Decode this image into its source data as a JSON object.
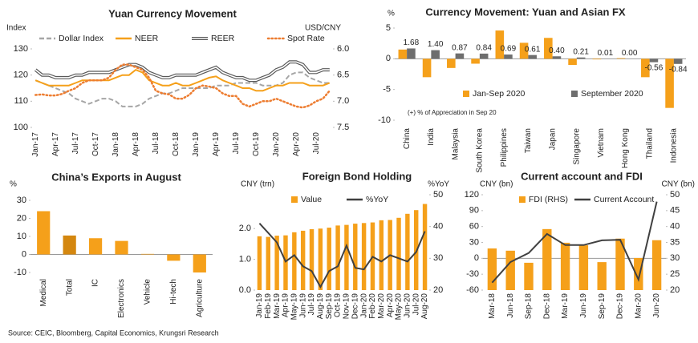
{
  "chart_data": [
    {
      "type": "line",
      "title": "Yuan Currency Movement",
      "ylabel": "Index",
      "y2label": "USD/CNY",
      "categories": [
        "Jan-17",
        null,
        null,
        "Apr-17",
        null,
        null,
        "Jul-17",
        null,
        null,
        "Oct-17",
        null,
        null,
        "Jan-18",
        null,
        null,
        "Apr-18",
        null,
        null,
        "Jul-18",
        null,
        null,
        "Oct-18",
        null,
        null,
        "Jan-19",
        null,
        null,
        "Apr-19",
        null,
        null,
        "Jul-19",
        null,
        null,
        "Oct-19",
        null,
        null,
        "Jan-20",
        null,
        null,
        "Apr-20",
        null,
        null,
        "Jul-20",
        null,
        null
      ],
      "series": [
        {
          "name": "Dollar Index",
          "color": "#a6a6a6",
          "style": "dashed",
          "values": [
            118,
            117,
            116,
            115,
            114,
            113,
            111,
            110,
            109,
            110,
            111,
            111,
            110,
            108,
            108,
            108,
            109,
            111,
            112,
            113,
            113,
            114,
            115,
            115,
            115,
            115,
            115,
            116,
            116,
            116,
            117,
            117,
            117,
            117,
            116,
            116,
            116,
            117,
            120,
            121,
            121,
            119,
            118,
            117,
            117
          ]
        },
        {
          "name": "NEER",
          "color": "#f5a01a",
          "style": "solid",
          "values": [
            118,
            117,
            116,
            116,
            116,
            116,
            117,
            118,
            118,
            118,
            118,
            118,
            119,
            120,
            120,
            122,
            121,
            118,
            117,
            116,
            116,
            117,
            116,
            116,
            117,
            118,
            119,
            119.5,
            118,
            117,
            116,
            115,
            115,
            114,
            114,
            115,
            116,
            116,
            117,
            117,
            117,
            116,
            116,
            116,
            117
          ]
        },
        {
          "name": "REER",
          "color": "#595959",
          "style": "double",
          "values": [
            122,
            120,
            120,
            119,
            119,
            119,
            120,
            120,
            121,
            121,
            121,
            121,
            122,
            123,
            124,
            124,
            123,
            121,
            120,
            119,
            119,
            120,
            120,
            120,
            120,
            121,
            122,
            123,
            121,
            120,
            119,
            119,
            118,
            118,
            119,
            120,
            122,
            123,
            125,
            125,
            124,
            121,
            121,
            122,
            122
          ]
        },
        {
          "name": "Spot Rate",
          "color": "#ed7d31",
          "style": "dotted",
          "axis": "y2",
          "values": [
            6.88,
            6.87,
            6.89,
            6.89,
            6.86,
            6.8,
            6.75,
            6.65,
            6.6,
            6.6,
            6.6,
            6.55,
            6.4,
            6.3,
            6.3,
            6.35,
            6.4,
            6.55,
            6.8,
            6.85,
            6.87,
            6.95,
            6.95,
            6.88,
            6.75,
            6.7,
            6.72,
            6.75,
            6.85,
            6.9,
            6.9,
            7.05,
            7.1,
            7.05,
            7.0,
            7.0,
            6.95,
            7.0,
            7.05,
            7.1,
            7.12,
            7.08,
            7.0,
            6.95,
            6.8
          ]
        }
      ],
      "ylim": [
        100,
        130
      ],
      "yticks": [
        100,
        110,
        120,
        130
      ],
      "y2lim": [
        6,
        7.5
      ],
      "y2reverse": true,
      "y2ticks": [
        {
          "value": 6,
          "label": "6.0"
        },
        6.5,
        {
          "value": 7,
          "label": "7.0"
        },
        7.5
      ],
      "legend": "top",
      "grid": false
    },
    {
      "type": "bar",
      "title": "Currency Movement: Yuan and Asian FX",
      "ylabel": "%",
      "annotation": "(+) % of Appreciation in Sep 20",
      "categories": [
        "China",
        "India",
        "Malaysia",
        "South Korea",
        "Philippines",
        "Taiwan",
        "Japan",
        "Singapore",
        "Vietnam",
        "Hong Kong",
        "Thailand",
        "Indonesia"
      ],
      "series": [
        {
          "name": "Jan-Sep 2020",
          "color": "#f5a01a",
          "values": [
            1.5,
            -3,
            -1.5,
            -0.8,
            4.6,
            2.6,
            3.4,
            -1,
            -0.1,
            0.1,
            -3,
            -8
          ]
        },
        {
          "name": "September 2020",
          "color": "#6e6e6e",
          "values": [
            1.68,
            1.4,
            0.87,
            0.84,
            0.69,
            0.61,
            0.4,
            0.21,
            0.01,
            0,
            -0.56,
            -0.84
          ],
          "value_labels": [
            "1.68",
            "1.40",
            "0.87",
            "0.84",
            "0.69",
            "0.61",
            "0.40",
            "0.21",
            "0.01",
            "0.00",
            "-0.56",
            "-0.84"
          ]
        }
      ],
      "ylim": [
        -10,
        5
      ],
      "yticks": [
        -10,
        -5,
        0,
        5
      ],
      "legend": "lower right",
      "grid": false
    },
    {
      "type": "bar",
      "title": "China’s Exports in August",
      "ylabel": "%",
      "categories": [
        "Medical",
        "Total",
        "IC",
        "Electronics",
        "Vehicle",
        "Hi-tech",
        "Agriculture"
      ],
      "values": [
        24,
        10.5,
        9,
        7.5,
        0.3,
        -3.5,
        -10
      ],
      "colors": [
        "#f5a01a",
        "#d4870f",
        "#f5a01a",
        "#f5a01a",
        "#f5a01a",
        "#f5a01a",
        "#f5a01a"
      ],
      "ylim": [
        -10,
        30
      ],
      "yticks": [
        -10,
        0,
        10,
        20,
        30
      ],
      "grid": false
    },
    {
      "type": "combo",
      "title": "Foreign Bond Holding",
      "ylabel": "CNY (trn)",
      "y2label": "%YoY",
      "categories": [
        "Jan-19",
        "Feb-19",
        "Mar-19",
        "Apr-19",
        "May-19",
        "Jun-19",
        "Jul-19",
        "Aug-19",
        "Sep-19",
        "Oct-19",
        "Nov-19",
        "Dec-19",
        "Jan-20",
        "Feb-20",
        "Mar-20",
        "Apr-20",
        "May-20",
        "Jun-20",
        "Jul-20",
        "Aug-20"
      ],
      "series": [
        {
          "name": "Value",
          "type": "bar",
          "color": "#f5a01a",
          "values": [
            1.75,
            1.73,
            1.77,
            1.78,
            1.88,
            1.93,
            1.98,
            2.0,
            2.03,
            2.1,
            2.12,
            2.16,
            2.18,
            2.2,
            2.27,
            2.28,
            2.35,
            2.48,
            2.6,
            2.8
          ]
        },
        {
          "name": "%YoY",
          "type": "line",
          "color": "#404040",
          "style": "solid",
          "axis": "y2",
          "values": [
            41,
            38,
            35,
            29,
            31,
            27.5,
            26,
            21,
            26,
            27.5,
            34,
            27,
            26.5,
            30.5,
            29,
            31,
            30,
            29,
            32,
            38.5
          ]
        }
      ],
      "ylim": [
        0,
        3.1
      ],
      "yticks": [
        {
          "value": 0,
          "label": "0.0"
        },
        {
          "value": 1,
          "label": "1.0"
        },
        {
          "value": 2,
          "label": "2.0"
        }
      ],
      "y2lim": [
        20,
        50
      ],
      "y2ticks": [
        20,
        30,
        40,
        50
      ],
      "legend": "top",
      "grid": false
    },
    {
      "type": "combo",
      "title": "Current account and FDI",
      "ylabel": "CNY (bn)",
      "y2label": "CNY (bn)",
      "categories": [
        "Mar-18",
        "Jun-18",
        "Sep-18",
        "Dec-18",
        "Mar-19",
        "Jun-19",
        "Sep-19",
        "Dec-19",
        "Mar-20",
        "Jun-20"
      ],
      "series": [
        {
          "name": "FDI (RHS)",
          "type": "bar",
          "axis": "y2",
          "color": "#f5a01a",
          "values": [
            33.1,
            32.4,
            28.6,
            39.2,
            34.9,
            34.1,
            28.8,
            36.2,
            30.1,
            35.7
          ]
        },
        {
          "name": "Current Account",
          "type": "line",
          "color": "#404040",
          "style": "solid",
          "values": [
            -46,
            -7,
            10,
            46,
            25,
            25,
            34,
            35,
            -40,
            107
          ]
        }
      ],
      "ylim": [
        -60,
        120
      ],
      "yticks": [
        -60,
        -30,
        0,
        30,
        60,
        90,
        120
      ],
      "y2lim": [
        20,
        50
      ],
      "y2ticks": [
        20,
        25,
        30,
        35,
        40,
        45,
        50
      ],
      "legend": "top",
      "grid": false
    }
  ],
  "source": "Source: CEIC, Bloomberg, Capital Economics, Krungsri Research"
}
